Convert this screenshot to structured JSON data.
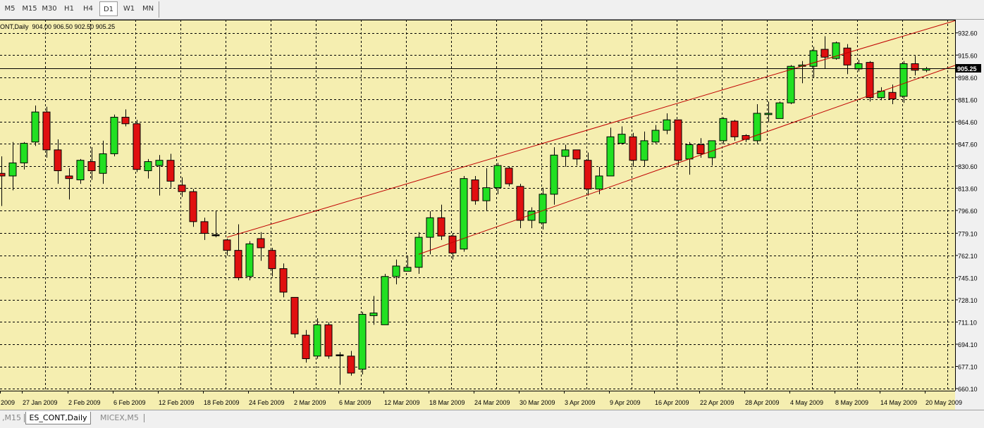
{
  "toolbar": {
    "timeframes": [
      "M5",
      "M15",
      "M30",
      "H1",
      "H4",
      "D1",
      "W1",
      "MN"
    ],
    "active": "D1"
  },
  "tabs": [
    {
      "label": ",M15",
      "active": false
    },
    {
      "label": "ES_CONT,Daily",
      "active": true
    },
    {
      "label": "MICEX,M5",
      "active": false
    }
  ],
  "colors": {
    "background": "#f5eeb0",
    "grid": "#000000",
    "bull": "#22e022",
    "bear": "#e01010",
    "trendline": "#c00000",
    "price_line": "#000000",
    "axis_text": "#000000",
    "label_bg": "#000000",
    "label_text": "#ffffff"
  },
  "chart_data": {
    "type": "candlestick",
    "title": "ES_CONT,Daily",
    "header_text": "ONT,Daily  904.00 906.50 902.50 905.25",
    "ohlc_header": {
      "open": 904.0,
      "high": 906.5,
      "low": 902.5,
      "close": 905.25
    },
    "current_price": 905.25,
    "current_price_label": "905.25",
    "ylim": [
      658.5,
      942.7
    ],
    "y_ticks": [
      "932.60",
      "915.60",
      "898.60",
      "881.60",
      "864.60",
      "847.60",
      "830.60",
      "813.60",
      "796.60",
      "779.10",
      "762.10",
      "745.10",
      "728.10",
      "711.10",
      "694.10",
      "677.10",
      "660.10"
    ],
    "x_ticks": [
      "2009",
      "27 Jan 2009",
      "2 Feb 2009",
      "6 Feb 2009",
      "12 Feb 2009",
      "18 Feb 2009",
      "24 Feb 2009",
      "2 Mar 2009",
      "6 Mar 2009",
      "12 Mar 2009",
      "18 Mar 2009",
      "24 Mar 2009",
      "30 Mar 2009",
      "3 Apr 2009",
      "9 Apr 2009",
      "16 Apr 2009",
      "22 Apr 2009",
      "28 Apr 2009",
      "4 May 2009",
      "8 May 2009",
      "14 May 2009",
      "20 May 2009"
    ],
    "candles": [
      [
        825.0,
        838.0,
        800.0,
        823.0
      ],
      [
        823.0,
        849.0,
        812.0,
        833.0
      ],
      [
        833.0,
        849.0,
        828.0,
        848.0
      ],
      [
        849.0,
        877.0,
        846.0,
        872.0
      ],
      [
        872.0,
        876.0,
        837.0,
        843.0
      ],
      [
        843.0,
        851.0,
        817.0,
        827.0
      ],
      [
        823.0,
        829.0,
        805.0,
        821.0
      ],
      [
        820.0,
        836.0,
        817.0,
        835.0
      ],
      [
        834.0,
        845.0,
        820.0,
        827.0
      ],
      [
        825.0,
        850.0,
        817.0,
        840.0
      ],
      [
        840.0,
        870.0,
        838.0,
        868.0
      ],
      [
        868.0,
        874.0,
        861.0,
        863.0
      ],
      [
        863.0,
        866.0,
        826.0,
        828.0
      ],
      [
        827.0,
        836.0,
        821.0,
        834.0
      ],
      [
        831.0,
        839.0,
        808.0,
        835.0
      ],
      [
        835.0,
        840.0,
        814.0,
        819.0
      ],
      [
        816.0,
        822.0,
        807.0,
        811.0
      ],
      [
        811.0,
        813.0,
        784.0,
        788.0
      ],
      [
        788.0,
        791.0,
        774.0,
        779.0
      ],
      [
        778.0,
        796.0,
        776.0,
        778.0
      ],
      [
        774.0,
        775.0,
        762.0,
        766.0
      ],
      [
        766.0,
        786.0,
        743.0,
        745.0
      ],
      [
        746.0,
        773.0,
        743.0,
        771.0
      ],
      [
        775.0,
        780.0,
        758.0,
        768.0
      ],
      [
        766.0,
        768.0,
        746.0,
        752.0
      ],
      [
        752.0,
        756.0,
        730.0,
        734.0
      ],
      [
        730.0,
        730.0,
        699.0,
        702.0
      ],
      [
        701.0,
        705.0,
        680.0,
        683.0
      ],
      [
        685.0,
        714.0,
        683.0,
        709.0
      ],
      [
        709.0,
        711.0,
        683.0,
        685.0
      ],
      [
        686.0,
        688.0,
        663.0,
        686.0
      ],
      [
        685.0,
        689.0,
        670.0,
        672.0
      ],
      [
        675.0,
        719.0,
        671.0,
        717.0
      ],
      [
        716.0,
        731.0,
        709.0,
        718.0
      ],
      [
        709.0,
        748.0,
        709.0,
        746.0
      ],
      [
        746.0,
        759.0,
        740.0,
        754.0
      ],
      [
        750.0,
        762.0,
        750.0,
        753.0
      ],
      [
        753.0,
        780.0,
        748.0,
        776.0
      ],
      [
        776.0,
        796.0,
        763.0,
        791.0
      ],
      [
        791.0,
        801.0,
        774.0,
        777.0
      ],
      [
        777.0,
        779.0,
        759.0,
        764.0
      ],
      [
        767.0,
        823.0,
        765.0,
        821.0
      ],
      [
        820.0,
        823.0,
        801.0,
        804.0
      ],
      [
        804.0,
        829.0,
        796.0,
        814.0
      ],
      [
        814.0,
        833.0,
        809.0,
        831.0
      ],
      [
        829.0,
        830.0,
        815.0,
        817.0
      ],
      [
        815.0,
        817.0,
        783.0,
        789.0
      ],
      [
        789.0,
        799.0,
        783.0,
        796.0
      ],
      [
        787.0,
        814.0,
        782.0,
        809.0
      ],
      [
        809.0,
        845.0,
        801.0,
        839.0
      ],
      [
        838.0,
        847.0,
        830.0,
        843.0
      ],
      [
        843.0,
        843.0,
        831.0,
        836.0
      ],
      [
        835.0,
        841.0,
        808.0,
        813.0
      ],
      [
        813.0,
        830.0,
        809.0,
        823.0
      ],
      [
        823.0,
        860.0,
        823.0,
        853.0
      ],
      [
        848.0,
        861.0,
        847.0,
        855.0
      ],
      [
        853.0,
        856.0,
        830.0,
        835.0
      ],
      [
        835.0,
        857.0,
        830.0,
        850.0
      ],
      [
        849.0,
        862.0,
        848.0,
        858.0
      ],
      [
        858.0,
        871.0,
        855.0,
        866.0
      ],
      [
        866.0,
        866.0,
        831.0,
        835.0
      ],
      [
        836.0,
        849.0,
        824.0,
        847.0
      ],
      [
        847.0,
        852.0,
        837.0,
        840.0
      ],
      [
        837.0,
        850.0,
        831.0,
        850.0
      ],
      [
        850.0,
        868.0,
        848.0,
        867.0
      ],
      [
        865.0,
        866.0,
        850.0,
        853.0
      ],
      [
        854.0,
        855.0,
        849.0,
        851.0
      ],
      [
        850.0,
        878.0,
        848.0,
        871.0
      ],
      [
        870.0,
        880.0,
        864.0,
        871.0
      ],
      [
        867.0,
        880.0,
        867.0,
        879.0
      ],
      [
        879.0,
        908.0,
        878.0,
        907.0
      ],
      [
        907.0,
        911.0,
        894.0,
        908.0
      ],
      [
        907.0,
        922.0,
        898.0,
        919.0
      ],
      [
        920.0,
        930.0,
        905.0,
        914.0
      ],
      [
        913.0,
        926.0,
        912.0,
        925.0
      ],
      [
        921.0,
        924.0,
        901.0,
        908.0
      ],
      [
        905.0,
        912.0,
        903.0,
        909.0
      ],
      [
        910.0,
        911.0,
        880.0,
        883.0
      ],
      [
        883.0,
        891.0,
        881.0,
        888.0
      ],
      [
        887.0,
        893.0,
        878.0,
        882.0
      ],
      [
        884.0,
        911.0,
        879.0,
        909.0
      ],
      [
        909.0,
        915.0,
        900.0,
        904.0
      ],
      [
        904.0,
        906.5,
        902.5,
        905.25
      ]
    ],
    "trendlines": [
      {
        "from": [
          20,
          776.0
        ],
        "to": [
          84,
          940.5
        ]
      },
      {
        "from": [
          37,
          763.0
        ],
        "to": [
          84,
          906.0
        ]
      }
    ],
    "grid": true
  }
}
